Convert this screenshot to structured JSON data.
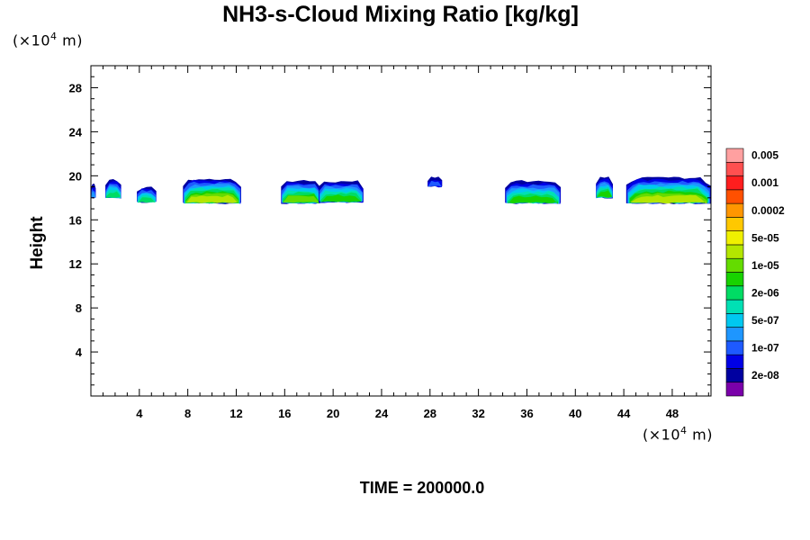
{
  "title": "NH3-s-Cloud Mixing Ratio [kg/kg]",
  "time_label": "TIME = 200000.0",
  "y_unit": {
    "prefix": "(×10",
    "exp": "4",
    "suffix": " m)"
  },
  "x_unit": {
    "prefix": "(×10",
    "exp": "4",
    "suffix": " m)"
  },
  "chart_data": {
    "type": "heatmap",
    "title": "NH3-s-Cloud Mixing Ratio [kg/kg]",
    "xlabel": "",
    "ylabel": "Height",
    "xlim": [
      0,
      51.2
    ],
    "ylim": [
      0,
      30
    ],
    "x_ticks": [
      4,
      8,
      12,
      16,
      20,
      24,
      28,
      32,
      36,
      40,
      44,
      48
    ],
    "y_ticks": [
      4,
      8,
      12,
      16,
      20,
      24,
      28
    ],
    "colorbar": {
      "labels": [
        "2e-08",
        "1e-07",
        "5e-07",
        "2e-06",
        "1e-05",
        "5e-05",
        "0.0002",
        "0.001",
        "0.005"
      ],
      "colors": [
        "#7a00aa",
        "#0000a0",
        "#0000e6",
        "#1e5aff",
        "#1e96ff",
        "#00c8f0",
        "#00e0b4",
        "#00dc64",
        "#18d200",
        "#64dc00",
        "#b4e600",
        "#f0f000",
        "#ffc800",
        "#ff9600",
        "#ff5000",
        "#ff1e1e",
        "#ff5050",
        "#ffa0a0"
      ]
    },
    "clouds": [
      {
        "x0": 0.0,
        "x1": 0.4,
        "y0": 18.0,
        "y1": 19.2,
        "peak": 4
      },
      {
        "x0": 1.2,
        "x1": 2.5,
        "y0": 18.0,
        "y1": 19.6,
        "peak": 7
      },
      {
        "x0": 3.8,
        "x1": 5.4,
        "y0": 17.6,
        "y1": 18.9,
        "peak": 7
      },
      {
        "x0": 7.6,
        "x1": 12.4,
        "y0": 17.5,
        "y1": 19.7,
        "peak": 10
      },
      {
        "x0": 15.7,
        "x1": 19.0,
        "y0": 17.5,
        "y1": 19.5,
        "peak": 9
      },
      {
        "x0": 18.8,
        "x1": 22.5,
        "y0": 17.6,
        "y1": 19.5,
        "peak": 8
      },
      {
        "x0": 27.8,
        "x1": 29.0,
        "y0": 19.0,
        "y1": 19.9,
        "peak": 3
      },
      {
        "x0": 34.2,
        "x1": 38.8,
        "y0": 17.5,
        "y1": 19.5,
        "peak": 8
      },
      {
        "x0": 41.7,
        "x1": 43.1,
        "y0": 18.0,
        "y1": 19.8,
        "peak": 8
      },
      {
        "x0": 44.2,
        "x1": 51.2,
        "y0": 17.5,
        "y1": 19.8,
        "peak": 10
      }
    ]
  }
}
